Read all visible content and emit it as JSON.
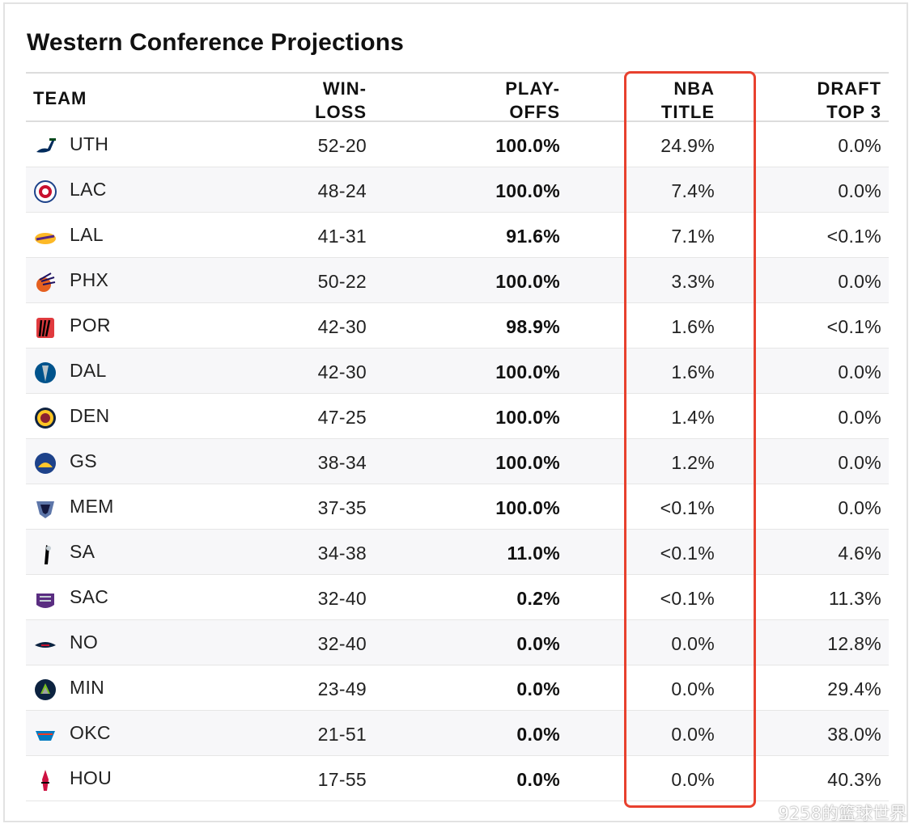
{
  "title": "Western Conference Projections",
  "columns": {
    "team": "TEAM",
    "winloss": [
      "WIN-",
      "LOSS"
    ],
    "playoffs": [
      "PLAY-",
      "OFFS"
    ],
    "nba_title": [
      "NBA",
      "TITLE"
    ],
    "draft_top3": [
      "DRAFT",
      "TOP 3"
    ]
  },
  "highlight_color": "#e8412e",
  "watermark": "9258的篮球世界",
  "rows": [
    {
      "team": "UTH",
      "logo": "jazz-logo-icon",
      "winloss": "52-20",
      "playoffs": "100.0%",
      "nba_title": "24.9%",
      "draft_top3": "0.0%"
    },
    {
      "team": "LAC",
      "logo": "clippers-logo-icon",
      "winloss": "48-24",
      "playoffs": "100.0%",
      "nba_title": "7.4%",
      "draft_top3": "0.0%"
    },
    {
      "team": "LAL",
      "logo": "lakers-logo-icon",
      "winloss": "41-31",
      "playoffs": "91.6%",
      "nba_title": "7.1%",
      "draft_top3": "<0.1%"
    },
    {
      "team": "PHX",
      "logo": "suns-logo-icon",
      "winloss": "50-22",
      "playoffs": "100.0%",
      "nba_title": "3.3%",
      "draft_top3": "0.0%"
    },
    {
      "team": "POR",
      "logo": "blazers-logo-icon",
      "winloss": "42-30",
      "playoffs": "98.9%",
      "nba_title": "1.6%",
      "draft_top3": "<0.1%"
    },
    {
      "team": "DAL",
      "logo": "mavericks-logo-icon",
      "winloss": "42-30",
      "playoffs": "100.0%",
      "nba_title": "1.6%",
      "draft_top3": "0.0%"
    },
    {
      "team": "DEN",
      "logo": "nuggets-logo-icon",
      "winloss": "47-25",
      "playoffs": "100.0%",
      "nba_title": "1.4%",
      "draft_top3": "0.0%"
    },
    {
      "team": "GS",
      "logo": "warriors-logo-icon",
      "winloss": "38-34",
      "playoffs": "100.0%",
      "nba_title": "1.2%",
      "draft_top3": "0.0%"
    },
    {
      "team": "MEM",
      "logo": "grizzlies-logo-icon",
      "winloss": "37-35",
      "playoffs": "100.0%",
      "nba_title": "<0.1%",
      "draft_top3": "0.0%"
    },
    {
      "team": "SA",
      "logo": "spurs-logo-icon",
      "winloss": "34-38",
      "playoffs": "11.0%",
      "nba_title": "<0.1%",
      "draft_top3": "4.6%"
    },
    {
      "team": "SAC",
      "logo": "kings-logo-icon",
      "winloss": "32-40",
      "playoffs": "0.2%",
      "nba_title": "<0.1%",
      "draft_top3": "11.3%"
    },
    {
      "team": "NO",
      "logo": "pelicans-logo-icon",
      "winloss": "32-40",
      "playoffs": "0.0%",
      "nba_title": "0.0%",
      "draft_top3": "12.8%"
    },
    {
      "team": "MIN",
      "logo": "timberwolves-logo-icon",
      "winloss": "23-49",
      "playoffs": "0.0%",
      "nba_title": "0.0%",
      "draft_top3": "29.4%"
    },
    {
      "team": "OKC",
      "logo": "thunder-logo-icon",
      "winloss": "21-51",
      "playoffs": "0.0%",
      "nba_title": "0.0%",
      "draft_top3": "38.0%"
    },
    {
      "team": "HOU",
      "logo": "rockets-logo-icon",
      "winloss": "17-55",
      "playoffs": "0.0%",
      "nba_title": "0.0%",
      "draft_top3": "40.3%"
    }
  ]
}
